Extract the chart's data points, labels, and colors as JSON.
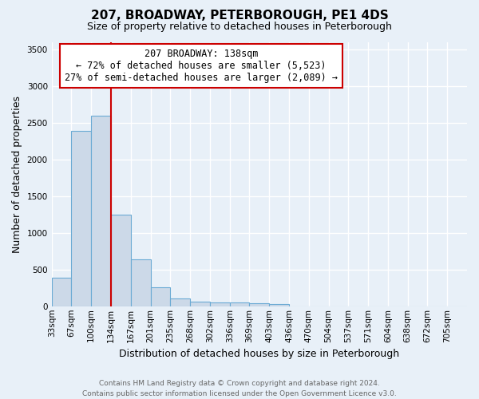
{
  "title": "207, BROADWAY, PETERBOROUGH, PE1 4DS",
  "subtitle": "Size of property relative to detached houses in Peterborough",
  "xlabel": "Distribution of detached houses by size in Peterborough",
  "ylabel": "Number of detached properties",
  "categories": [
    "33sqm",
    "67sqm",
    "100sqm",
    "134sqm",
    "167sqm",
    "201sqm",
    "235sqm",
    "268sqm",
    "302sqm",
    "336sqm",
    "369sqm",
    "403sqm",
    "436sqm",
    "470sqm",
    "504sqm",
    "537sqm",
    "571sqm",
    "604sqm",
    "638sqm",
    "672sqm",
    "705sqm"
  ],
  "values": [
    390,
    2390,
    2600,
    1250,
    640,
    260,
    110,
    60,
    55,
    50,
    40,
    35,
    0,
    0,
    0,
    0,
    0,
    0,
    0,
    0,
    0
  ],
  "bar_color": "#ccd9e8",
  "bar_edge_color": "#6aaad4",
  "plot_bg_color": "#e8f0f8",
  "fig_bg_color": "#e8f0f8",
  "grid_color": "#ffffff",
  "vline_color": "#cc0000",
  "vline_x": 3.0,
  "annotation_line1": "207 BROADWAY: 138sqm",
  "annotation_line2": "← 72% of detached houses are smaller (5,523)",
  "annotation_line3": "27% of semi-detached houses are larger (2,089) →",
  "annotation_box_facecolor": "#ffffff",
  "annotation_box_edgecolor": "#cc0000",
  "ylim": [
    0,
    3600
  ],
  "yticks": [
    0,
    500,
    1000,
    1500,
    2000,
    2500,
    3000,
    3500
  ],
  "title_fontsize": 11,
  "subtitle_fontsize": 9,
  "ylabel_fontsize": 9,
  "xlabel_fontsize": 9,
  "tick_fontsize": 7.5,
  "annotation_fontsize": 8.5,
  "footer": "Contains HM Land Registry data © Crown copyright and database right 2024.\nContains public sector information licensed under the Open Government Licence v3.0.",
  "footer_fontsize": 6.5,
  "footer_color": "#666666"
}
